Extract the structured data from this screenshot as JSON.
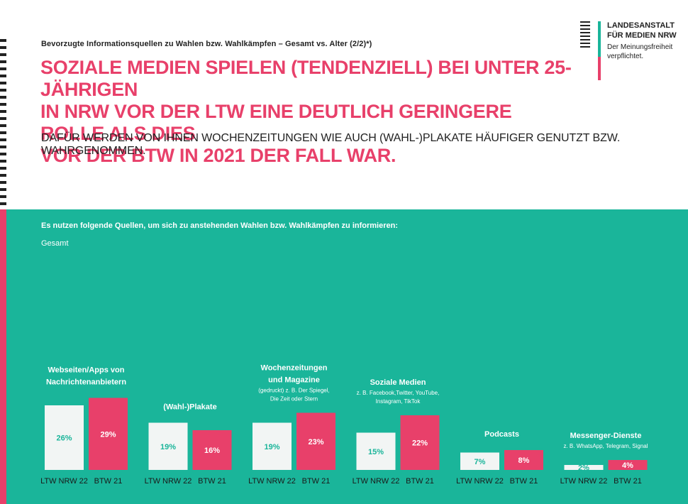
{
  "header": {
    "kicker": "Bevorzugte Informationsquellen zu Wahlen bzw. Wahlkämpfen – Gesamt vs. Alter (2/2)*)",
    "headline_lines": [
      "SOZIALE MEDIEN SPIELEN (TENDENZIELL) BEI UNTER 25-JÄHRIGEN",
      "IN NRW VOR DER LTW EINE DEUTLICH GERINGERE ROLLE ALS DIES",
      "VOR DER BTW IN 2021 DER FALL WAR."
    ],
    "subline": "DAFÜR WERDEN VON IHNEN WOCHENZEITUNGEN WIE AUCH (WAHL-)PLAKATE HÄUFIGER GENUTZT BZW. WAHRGENOMMEN."
  },
  "logo": {
    "name_line1": "LANDESANSTALT",
    "name_line2": "FÜR MEDIEN NRW",
    "tagline_line1": "Der Meinungsfreiheit",
    "tagline_line2": "verpflichtet."
  },
  "panel": {
    "question": "Es nutzen folgende Quellen, um sich zu anstehenden Wahlen bzw. Wahlkämpfen zu informieren:",
    "group_label": "Gesamt"
  },
  "colors": {
    "teal": "#1ab59a",
    "pink": "#e8406a",
    "bar_light": "#f2f5f4",
    "text_dark": "#222222"
  },
  "chart_data": {
    "type": "bar",
    "series_labels": [
      "LTW NRW 22",
      "BTW 21"
    ],
    "categories": [
      {
        "title_lines": [
          "Webseiten/Apps von",
          "Nachrichtenanbietern"
        ],
        "sub_lines": []
      },
      {
        "title_lines": [
          "(Wahl-)Plakate"
        ],
        "sub_lines": []
      },
      {
        "title_lines": [
          "Wochenzeitungen",
          "und Magazine"
        ],
        "sub_lines": [
          "(gedruckt) z. B. Der Spiegel,",
          "Die Zeit oder Stern"
        ]
      },
      {
        "title_lines": [
          "Soziale Medien"
        ],
        "sub_lines": [
          "z. B. Facebook,Twitter, YouTube,",
          "Instagram, TikTok"
        ]
      },
      {
        "title_lines": [
          "Podcasts"
        ],
        "sub_lines": []
      },
      {
        "title_lines": [
          "Messenger-Dienste"
        ],
        "sub_lines": [
          "z. B. WhatsApp, Telegram, Signal"
        ]
      }
    ],
    "series": [
      {
        "values": [
          26,
          19,
          19,
          15,
          7,
          2
        ],
        "labels": [
          "26%",
          "19%",
          "19%",
          "15%",
          "7%",
          "2%"
        ]
      },
      {
        "values": [
          29,
          16,
          23,
          22,
          8,
          4
        ],
        "labels": [
          "29%",
          "16%",
          "23%",
          "22%",
          "8%",
          "4%"
        ]
      }
    ]
  }
}
